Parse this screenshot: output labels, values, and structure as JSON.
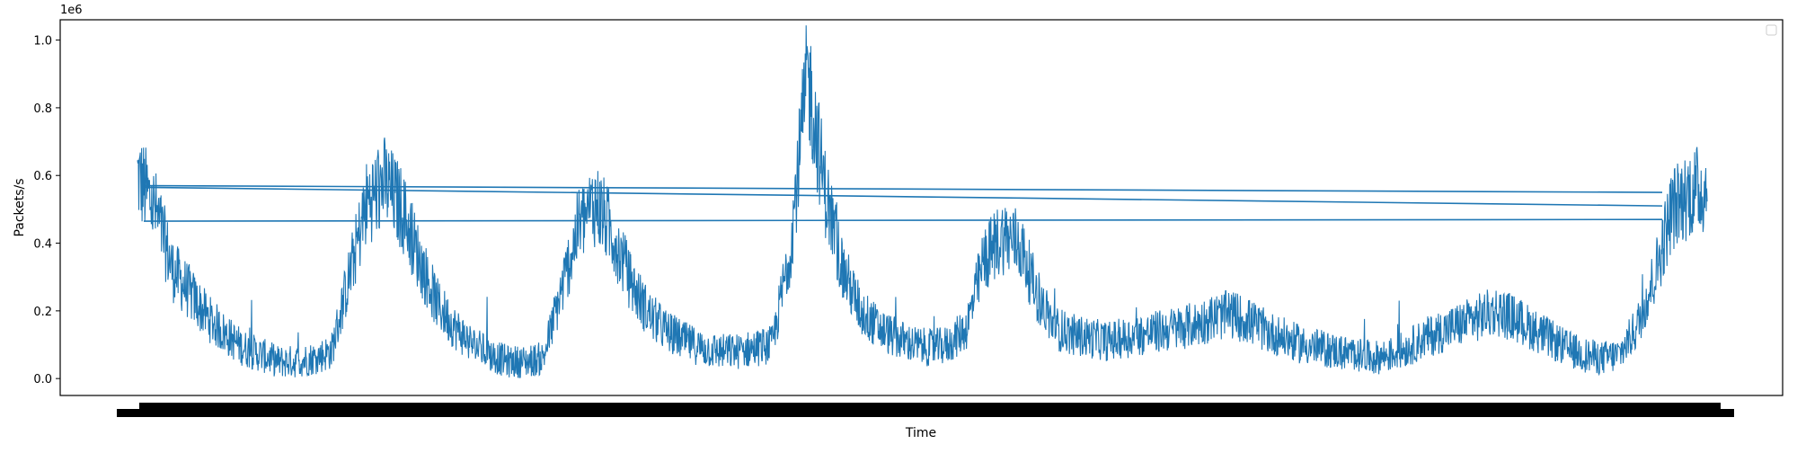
{
  "chart_data": {
    "type": "line",
    "title": "",
    "xlabel": "Time",
    "ylabel": "Packets/s",
    "y_offset_text": "1e6",
    "ylim": [
      -0.05,
      1.06
    ],
    "y_ticks": [
      0.0,
      0.2,
      0.4,
      0.6,
      0.8,
      1.0
    ],
    "y_tick_labels": [
      "0.0",
      "0.2",
      "0.4",
      "0.6",
      "0.8",
      "1.0"
    ],
    "x_tick_labels_note": "",
    "grid": false,
    "legend": {
      "placement": "top-right",
      "entries": []
    },
    "line_color": "#1f77b4",
    "series": [
      {
        "name": "",
        "values_sampled": [
          0.6,
          0.5,
          0.32,
          0.25,
          0.18,
          0.13,
          0.09,
          0.07,
          0.05,
          0.05,
          0.06,
          0.08,
          0.3,
          0.52,
          0.58,
          0.5,
          0.35,
          0.22,
          0.15,
          0.1,
          0.07,
          0.05,
          0.05,
          0.06,
          0.25,
          0.45,
          0.52,
          0.42,
          0.28,
          0.19,
          0.14,
          0.11,
          0.09,
          0.08,
          0.08,
          0.09,
          0.1,
          0.38,
          0.9,
          0.55,
          0.32,
          0.2,
          0.15,
          0.12,
          0.1,
          0.09,
          0.1,
          0.15,
          0.35,
          0.42,
          0.4,
          0.25,
          0.15,
          0.13,
          0.12,
          0.11,
          0.12,
          0.13,
          0.14,
          0.15,
          0.16,
          0.18,
          0.19,
          0.17,
          0.14,
          0.12,
          0.1,
          0.09,
          0.08,
          0.07,
          0.06,
          0.07,
          0.09,
          0.12,
          0.14,
          0.16,
          0.18,
          0.2,
          0.18,
          0.15,
          0.12,
          0.09,
          0.07,
          0.06,
          0.07,
          0.15,
          0.3,
          0.5,
          0.55,
          0.56
        ]
      }
    ]
  }
}
